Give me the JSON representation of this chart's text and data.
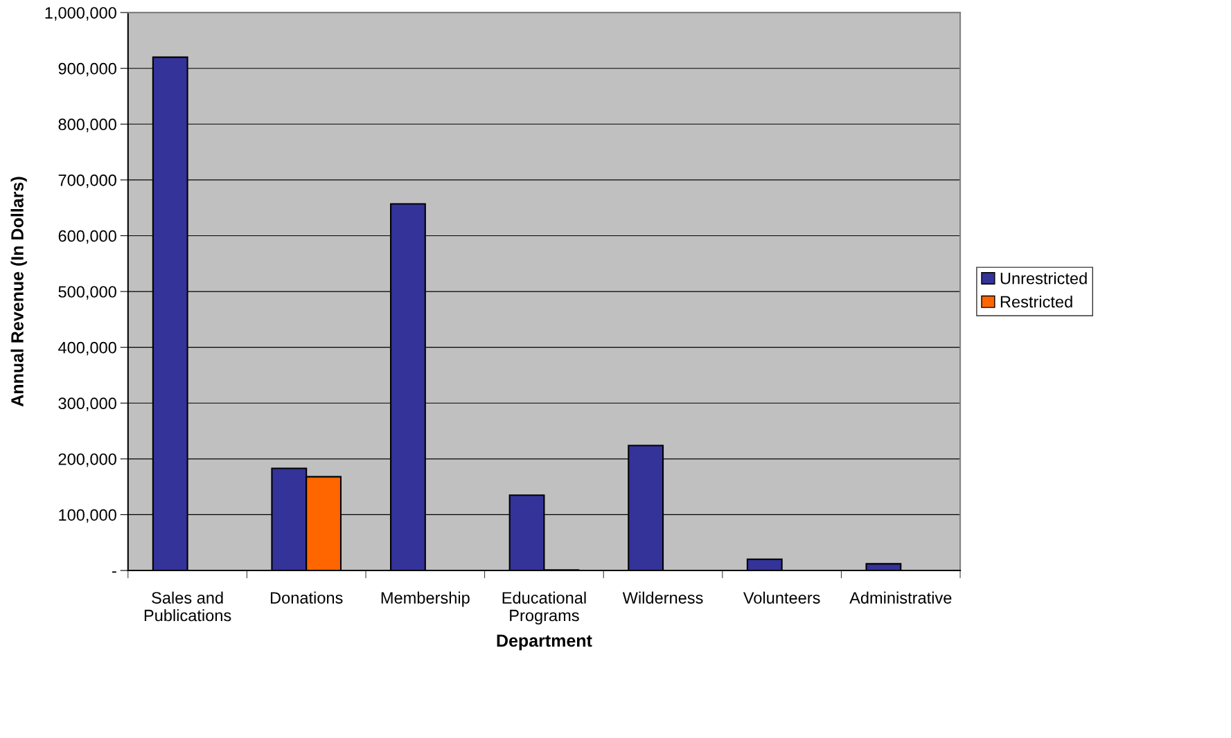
{
  "chart_data": {
    "type": "bar",
    "xlabel": "Department",
    "ylabel": "Annual Revenue (In Dollars)",
    "categories": [
      "Sales and\nPublications",
      "Donations",
      "Membership",
      "Educational\nPrograms",
      "Wilderness",
      "Volunteers",
      "Administrative"
    ],
    "series": [
      {
        "name": "Unrestricted",
        "color": "#333399",
        "values": [
          920000,
          183000,
          657000,
          135000,
          224000,
          20000,
          12000
        ]
      },
      {
        "name": "Restricted",
        "color": "#ff6600",
        "values": [
          null,
          168000,
          null,
          1000,
          null,
          null,
          null
        ]
      }
    ],
    "ylim": [
      0,
      1000000
    ],
    "yticks": [
      {
        "value": 0,
        "label": "-"
      },
      {
        "value": 100000,
        "label": "100,000"
      },
      {
        "value": 200000,
        "label": "200,000"
      },
      {
        "value": 300000,
        "label": "300,000"
      },
      {
        "value": 400000,
        "label": "400,000"
      },
      {
        "value": 500000,
        "label": "500,000"
      },
      {
        "value": 600000,
        "label": "600,000"
      },
      {
        "value": 700000,
        "label": "700,000"
      },
      {
        "value": 800000,
        "label": "800,000"
      },
      {
        "value": 900000,
        "label": "900,000"
      },
      {
        "value": 1000000,
        "label": "1,000,000"
      }
    ],
    "grid": "y",
    "legend": "right"
  }
}
